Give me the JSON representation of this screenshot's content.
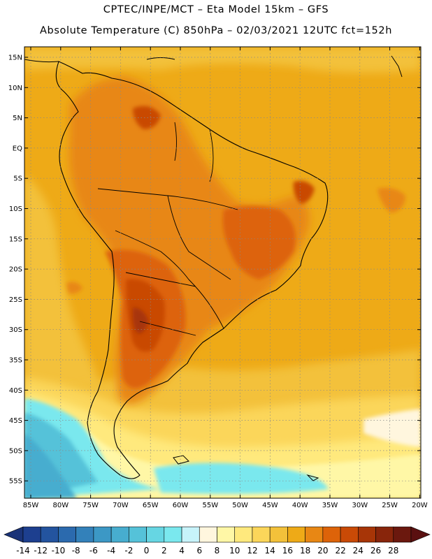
{
  "header": {
    "line1": "CPTEC/INPE/MCT –  Eta Model 15km – GFS",
    "line2": "Absolute Temperature (C) 850hPa – 02/03/2021 12UTC fct=152h"
  },
  "map": {
    "lat_labels": [
      "15N",
      "10N",
      "5N",
      "EQ",
      "5S",
      "10S",
      "15S",
      "20S",
      "25S",
      "30S",
      "35S",
      "40S",
      "45S",
      "50S",
      "55S"
    ],
    "lon_labels": [
      "85W",
      "80W",
      "75W",
      "70W",
      "65W",
      "60W",
      "55W",
      "50W",
      "45W",
      "40W",
      "35W",
      "30W",
      "25W",
      "20W"
    ],
    "grid": "dotted"
  },
  "colorbar": {
    "labels": [
      "-14",
      "-12",
      "-10",
      "-8",
      "-6",
      "-4",
      "-2",
      "0",
      "2",
      "4",
      "6",
      "8",
      "10",
      "12",
      "14",
      "16",
      "18",
      "20",
      "22",
      "24",
      "26",
      "28"
    ],
    "colors": [
      "#1d3f8f",
      "#23549f",
      "#2b6aae",
      "#3381ba",
      "#3c98c5",
      "#47adcf",
      "#55c2d9",
      "#66d6e3",
      "#7ae8ee",
      "#c7f3fa",
      "#fff6de",
      "#fff7a6",
      "#ffe97d",
      "#fbd65a",
      "#f3c13a",
      "#eeaa17",
      "#e88714",
      "#dd6309",
      "#c94a06",
      "#a73507",
      "#88250b",
      "#6b180e"
    ],
    "under_color": "#1a3378",
    "over_color": "#5a1010"
  }
}
